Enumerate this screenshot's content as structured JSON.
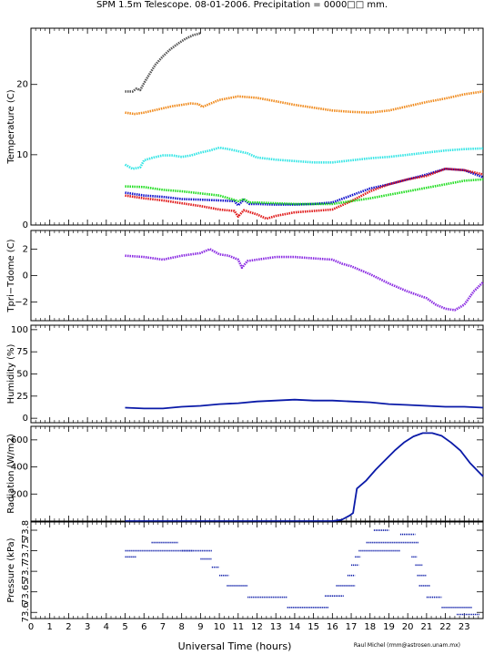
{
  "title": "SPM 1.5m Telescope. 08-01-2006. Precipitation = 0000□□ mm.",
  "xlabel": "Universal Time (hours)",
  "credit": "Raul Michel (rmm@astrosen.unam.mx)",
  "x_ticks": [
    "0",
    "1",
    "2",
    "3",
    "4",
    "5",
    "6",
    "7",
    "8",
    "9",
    "10",
    "11",
    "12",
    "13",
    "14",
    "15",
    "16",
    "17",
    "18",
    "19",
    "20",
    "21",
    "22",
    "23"
  ],
  "colors": {
    "grey": "#555555",
    "orange": "#f08a1c",
    "cyan": "#33e5e5",
    "blue": "#1010cc",
    "red": "#e01818",
    "green": "#22dd22",
    "purple": "#8a2be2",
    "navy": "#0a1aa8"
  },
  "chart_data": [
    {
      "type": "scatter",
      "ylabel": "Temperature (C)",
      "y_ticks": [
        "0",
        "10",
        "20"
      ],
      "xlim": [
        0,
        24
      ],
      "ylim": [
        0,
        28
      ],
      "series": [
        {
          "color": "grey",
          "x": [
            5.0,
            5.4,
            5.6,
            5.8,
            6.0,
            6.3,
            6.6,
            7.0,
            7.4,
            7.8,
            8.2,
            8.6,
            9.0
          ],
          "y": [
            19.0,
            19.0,
            19.4,
            19.2,
            20.2,
            21.5,
            22.8,
            24.0,
            25.0,
            25.8,
            26.5,
            27.0,
            27.3
          ]
        },
        {
          "color": "orange",
          "x": [
            5.0,
            5.5,
            6.0,
            6.5,
            7.0,
            7.5,
            8.0,
            8.5,
            8.9,
            9.1,
            10,
            11,
            12,
            13,
            14,
            15,
            16,
            17,
            18,
            19,
            20,
            21,
            22,
            23,
            24
          ],
          "y": [
            16.0,
            15.8,
            16.0,
            16.3,
            16.6,
            16.9,
            17.1,
            17.3,
            17.2,
            16.8,
            17.8,
            18.3,
            18.1,
            17.6,
            17.1,
            16.7,
            16.3,
            16.1,
            16.0,
            16.3,
            16.9,
            17.5,
            18.0,
            18.6,
            19.0
          ]
        },
        {
          "color": "cyan",
          "x": [
            5.0,
            5.4,
            5.8,
            6.0,
            6.5,
            7.0,
            7.5,
            8.0,
            8.5,
            9.0,
            9.5,
            10,
            10.5,
            11,
            11.5,
            12,
            13,
            14,
            15,
            16,
            17,
            18,
            19,
            20,
            21,
            22,
            23,
            24
          ],
          "y": [
            8.6,
            8.0,
            8.2,
            9.2,
            9.6,
            9.9,
            9.9,
            9.7,
            9.9,
            10.3,
            10.6,
            11.0,
            10.8,
            10.5,
            10.2,
            9.6,
            9.3,
            9.1,
            8.9,
            8.9,
            9.2,
            9.5,
            9.7,
            10.0,
            10.3,
            10.6,
            10.8,
            10.9
          ]
        },
        {
          "color": "blue",
          "x": [
            5,
            6,
            7,
            8,
            9,
            10,
            10.8,
            11,
            11.3,
            11.6,
            12,
            13,
            14,
            15,
            16,
            17,
            18,
            19,
            20,
            21,
            22,
            23,
            24
          ],
          "y": [
            4.6,
            4.2,
            4.0,
            3.7,
            3.6,
            3.5,
            3.4,
            2.8,
            3.6,
            3.0,
            3.0,
            2.9,
            2.9,
            3.0,
            3.2,
            4.2,
            5.2,
            5.8,
            6.5,
            7.2,
            8.0,
            7.8,
            6.8
          ]
        },
        {
          "color": "red",
          "x": [
            5,
            6,
            7,
            8,
            9,
            10,
            10.8,
            11,
            11.3,
            12,
            12.5,
            13,
            14,
            15,
            16,
            17,
            18,
            19,
            20,
            21,
            22,
            23,
            24
          ],
          "y": [
            4.2,
            3.8,
            3.5,
            3.1,
            2.7,
            2.2,
            2.0,
            1.2,
            2.1,
            1.5,
            0.9,
            1.3,
            1.8,
            2.0,
            2.2,
            3.4,
            4.8,
            5.8,
            6.5,
            7.0,
            8.0,
            7.8,
            7.2
          ]
        },
        {
          "color": "green",
          "x": [
            5,
            6,
            7,
            8,
            9,
            10,
            11,
            11.3,
            11.6,
            12,
            13,
            14,
            15,
            16,
            17,
            18,
            19,
            20,
            21,
            22,
            23,
            24
          ],
          "y": [
            5.5,
            5.4,
            5.0,
            4.8,
            4.5,
            4.2,
            3.4,
            3.7,
            3.2,
            3.2,
            3.1,
            3.0,
            3.0,
            3.0,
            3.4,
            3.8,
            4.3,
            4.8,
            5.3,
            5.8,
            6.3,
            6.5
          ]
        }
      ]
    },
    {
      "type": "scatter",
      "ylabel": "Tpri−Tdome (C)",
      "y_ticks": [
        "−2",
        "0",
        "2"
      ],
      "xlim": [
        0,
        24
      ],
      "ylim": [
        -3.4,
        3.4
      ],
      "series": [
        {
          "color": "purple",
          "x": [
            5,
            6,
            7,
            8,
            9,
            9.5,
            10,
            10.5,
            11,
            11.2,
            11.5,
            12,
            13,
            14,
            15,
            16,
            16.5,
            17,
            18,
            19,
            20,
            21,
            21.5,
            22,
            22.5,
            23,
            23.5,
            24
          ],
          "y": [
            1.5,
            1.4,
            1.2,
            1.5,
            1.7,
            2.0,
            1.6,
            1.5,
            1.2,
            0.6,
            1.1,
            1.2,
            1.4,
            1.4,
            1.3,
            1.2,
            0.9,
            0.7,
            0.1,
            -0.6,
            -1.2,
            -1.7,
            -2.2,
            -2.5,
            -2.6,
            -2.2,
            -1.2,
            -0.5
          ]
        }
      ]
    },
    {
      "type": "line",
      "ylabel": "Humidity (%)",
      "y_ticks": [
        "0",
        "25",
        "50",
        "75",
        "100"
      ],
      "xlim": [
        0,
        24
      ],
      "ylim": [
        -5,
        105
      ],
      "series": [
        {
          "color": "navy",
          "x": [
            5,
            6,
            7,
            8,
            9,
            10,
            11,
            12,
            13,
            14,
            15,
            16,
            17,
            18,
            19,
            20,
            21,
            22,
            23,
            24
          ],
          "y": [
            12,
            11,
            11,
            13,
            14,
            16,
            17,
            19,
            20,
            21,
            20,
            20,
            19,
            18,
            16,
            15,
            14,
            13,
            13,
            12
          ]
        }
      ]
    },
    {
      "type": "line",
      "ylabel": "Radiation (W/m2)",
      "y_ticks": [
        "200",
        "400",
        "600"
      ],
      "xlim": [
        0,
        24
      ],
      "ylim": [
        0,
        700
      ],
      "series": [
        {
          "color": "navy",
          "x": [
            5,
            10,
            16,
            16.5,
            16.9,
            17.1,
            17.3,
            17.8,
            18.3,
            18.8,
            19.3,
            19.8,
            20.3,
            20.8,
            21.3,
            21.8,
            22.3,
            22.8,
            23.3,
            24
          ],
          "y": [
            0,
            0,
            0,
            10,
            40,
            60,
            240,
            300,
            380,
            450,
            520,
            580,
            625,
            650,
            650,
            630,
            580,
            520,
            430,
            330
          ]
        }
      ]
    },
    {
      "type": "scatter",
      "ylabel": "Pressure (kPa)",
      "y_ticks": [
        "73.6",
        "73.65",
        "73.7",
        "73.75",
        "73.8"
      ],
      "xlim": [
        0,
        24
      ],
      "ylim": [
        73.585,
        73.82
      ],
      "series": [
        {
          "color": "navy",
          "segments": [
            [
              5.0,
              8.6,
              73.75
            ],
            [
              5.0,
              5.6,
              73.735
            ],
            [
              6.4,
              7.8,
              73.77
            ],
            [
              8.0,
              9.6,
              73.75
            ],
            [
              9.0,
              9.6,
              73.73
            ],
            [
              9.6,
              10.0,
              73.71
            ],
            [
              10.0,
              10.5,
              73.69
            ],
            [
              10.4,
              11.5,
              73.665
            ],
            [
              11.5,
              13.6,
              73.637
            ],
            [
              13.6,
              15.8,
              73.612
            ],
            [
              15.6,
              16.6,
              73.64
            ],
            [
              16.2,
              17.2,
              73.665
            ],
            [
              16.8,
              17.2,
              73.69
            ],
            [
              17.0,
              17.4,
              73.715
            ],
            [
              17.2,
              17.5,
              73.735
            ],
            [
              17.4,
              19.6,
              73.75
            ],
            [
              17.8,
              20.6,
              73.77
            ],
            [
              18.2,
              19.0,
              73.8
            ],
            [
              19.6,
              20.4,
              73.79
            ],
            [
              20.2,
              20.5,
              73.735
            ],
            [
              20.4,
              20.8,
              73.715
            ],
            [
              20.5,
              21.0,
              73.69
            ],
            [
              20.6,
              21.2,
              73.665
            ],
            [
              21.0,
              21.8,
              73.637
            ],
            [
              21.8,
              23.4,
              73.612
            ],
            [
              22.6,
              23.8,
              73.595
            ]
          ]
        }
      ]
    }
  ]
}
